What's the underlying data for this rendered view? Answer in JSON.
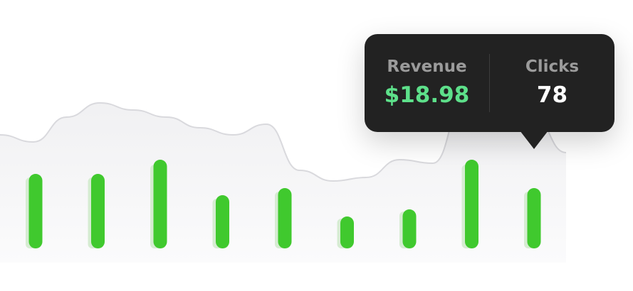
{
  "chart_data": {
    "type": "bar",
    "categories": [
      "",
      "",
      "",
      "",
      "",
      "",
      "",
      "",
      ""
    ],
    "series": [
      {
        "values": [
          100,
          100,
          118,
          70,
          80,
          42,
          52,
          118,
          80
        ]
      },
      {
        "values": [
          105,
          105,
          125,
          75,
          85,
          45,
          55,
          125,
          85
        ]
      }
    ],
    "area_trend": [
      160,
      150,
      185,
      205,
      195,
      185,
      170,
      160,
      175,
      110,
      95,
      100,
      125,
      120,
      215,
      238,
      188,
      135
    ],
    "ylim": [
      0,
      240
    ],
    "grid": false,
    "colors": {
      "bar_primary": "#40c92e",
      "bar_shadow": "#d6ecd2",
      "area_fill": "#f1f1f3",
      "area_line": "#d9d9dd"
    },
    "highlight_index": 8
  },
  "tooltip": {
    "revenue_label": "Revenue",
    "revenue_value": "$18.98",
    "clicks_label": "Clicks",
    "clicks_value": "78"
  }
}
